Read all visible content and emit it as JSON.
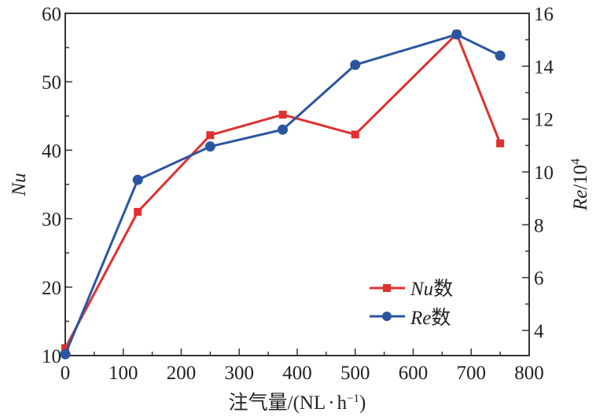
{
  "chart_data": {
    "type": "line",
    "title": "",
    "xlabel": "注气量/(NL·h⁻¹)",
    "xlabel_parts": {
      "main": "注气量/(NL",
      "dot": "·",
      "unit": "h",
      "sup": "−1",
      "close": ")"
    },
    "ylabel_left": "Nu",
    "ylabel_right": "Re/10⁴",
    "ylabel_right_parts": {
      "var": "Re",
      "rest": "/10",
      "sup": "4"
    },
    "xlim": [
      0,
      800
    ],
    "ylim_left": [
      10,
      60
    ],
    "ylim_right": [
      3.05,
      16
    ],
    "x_ticks": [
      "0",
      "100",
      "200",
      "300",
      "400",
      "500",
      "600",
      "700",
      "800"
    ],
    "y_left_ticks": [
      "10",
      "20",
      "30",
      "40",
      "50",
      "60"
    ],
    "y_right_ticks": [
      "4",
      "6",
      "8",
      "10",
      "12",
      "14",
      "16"
    ],
    "grid": false,
    "legend_position": "bottom-right",
    "x": [
      0,
      125,
      250,
      375,
      500,
      675,
      750
    ],
    "series": [
      {
        "name": "Nu数",
        "name_var": "Nu",
        "name_suffix": "数",
        "axis": "left",
        "marker": "square",
        "color": "#e03030",
        "values": [
          11.1,
          31.0,
          42.2,
          45.2,
          42.3,
          57.0,
          41.0
        ]
      },
      {
        "name": "Re数",
        "name_var": "Re",
        "name_suffix": "数",
        "axis": "right",
        "marker": "circle",
        "color": "#2a56a0",
        "values": [
          3.1,
          9.7,
          10.96,
          11.6,
          14.05,
          15.2,
          14.4
        ]
      }
    ]
  }
}
